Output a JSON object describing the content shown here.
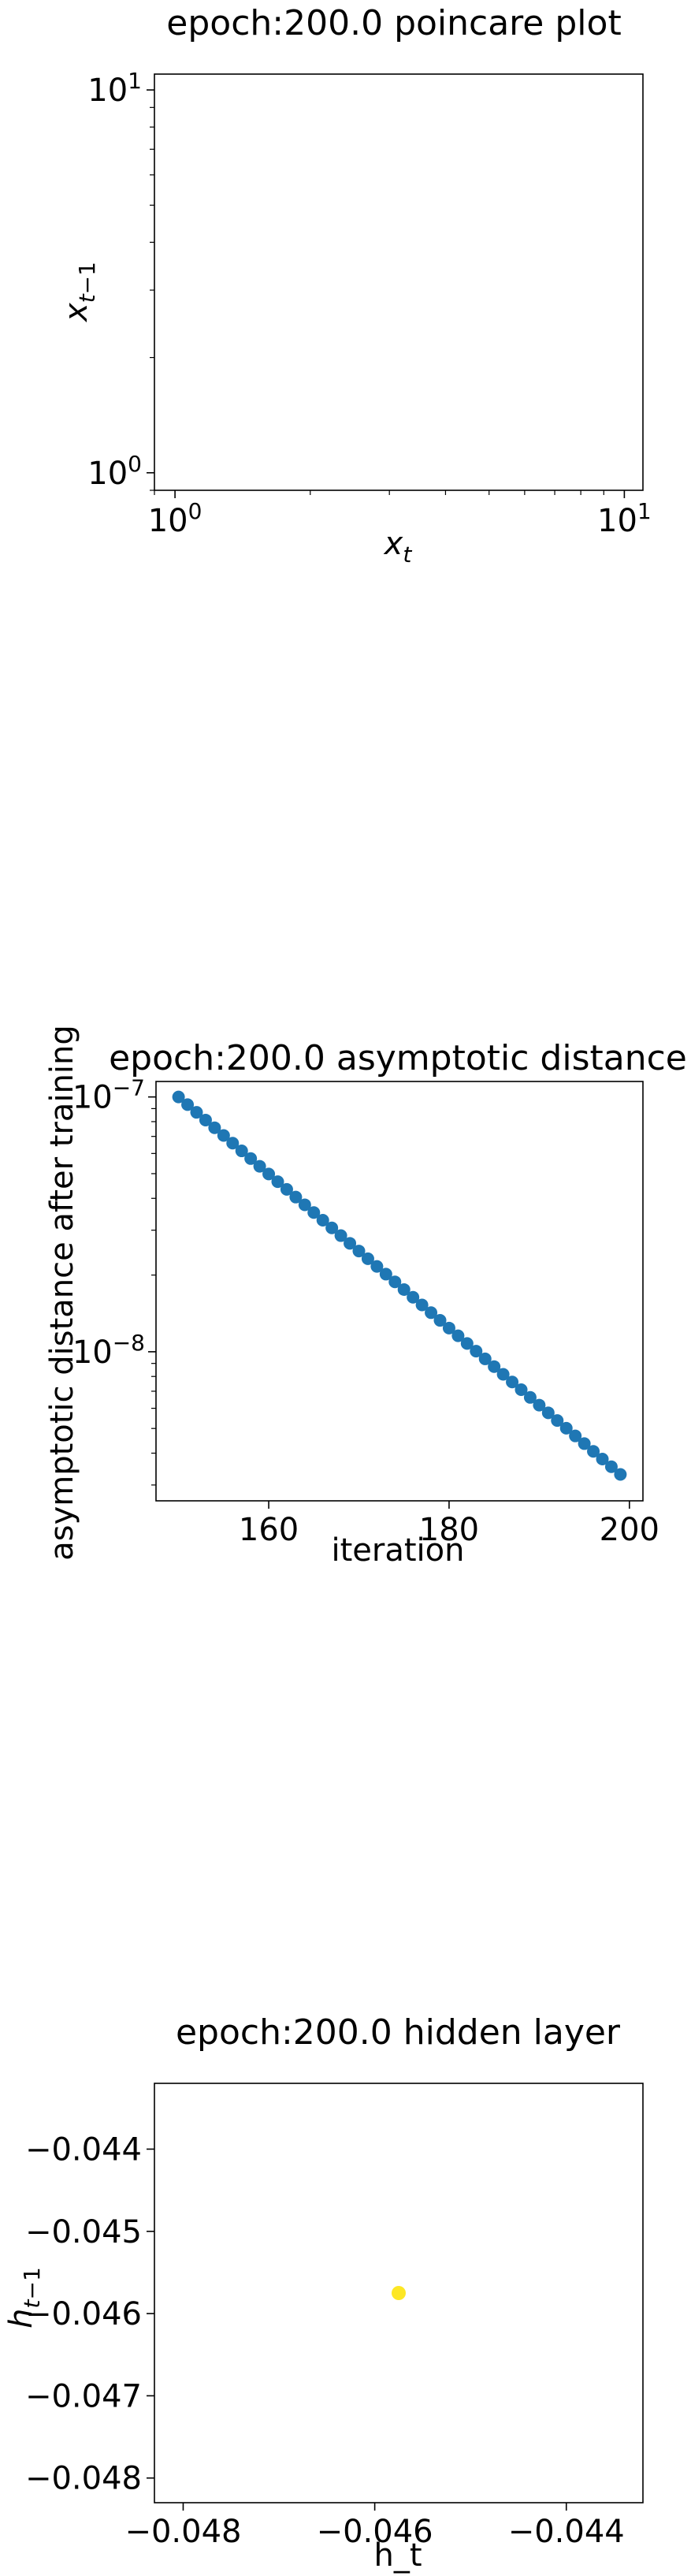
{
  "chart_data": [
    {
      "type": "scatter",
      "title": "epoch:200.0 poincare plot",
      "xlabel": "x_t",
      "ylabel": "x_{t-1}",
      "xscale": "log",
      "yscale": "log",
      "xlim": [
        0.9,
        11
      ],
      "ylim": [
        0.9,
        11
      ],
      "xticks": [
        {
          "value": 1,
          "base": "10",
          "exp": "0"
        },
        {
          "value": 10,
          "base": "10",
          "exp": "1"
        }
      ],
      "yticks": [
        {
          "value": 1,
          "base": "10",
          "exp": "0"
        },
        {
          "value": 10,
          "base": "10",
          "exp": "1"
        }
      ],
      "points": [],
      "grid": false
    },
    {
      "type": "scatter",
      "title": "epoch:200.0 asymptotic distance",
      "xlabel": "iteration",
      "ylabel": "asymptotic distance after training",
      "yscale": "log",
      "xlim": [
        147.5,
        201.5
      ],
      "ylim": [
        2.6e-09,
        1.15e-07
      ],
      "xticks": [
        {
          "value": 160,
          "label": "160"
        },
        {
          "value": 180,
          "label": "180"
        },
        {
          "value": 200,
          "label": "200"
        }
      ],
      "yticks": [
        {
          "value": 1e-08,
          "base": "10",
          "exp": "−8"
        },
        {
          "value": 1e-07,
          "base": "10",
          "exp": "−7"
        }
      ],
      "marker_color": "#1f77b4",
      "x_start": 150,
      "x_end": 199,
      "y_start": 1e-07,
      "y_end": 3.3e-09,
      "grid": false
    },
    {
      "type": "scatter",
      "title": "epoch:200.0 hidden layer",
      "xlabel": "h_t",
      "ylabel": "h_{t-1}",
      "xlim": [
        -0.0483,
        -0.0432
      ],
      "ylim": [
        -0.0483,
        -0.0432
      ],
      "xticks": [
        {
          "value": -0.048,
          "label": "−0.048"
        },
        {
          "value": -0.046,
          "label": "−0.046"
        },
        {
          "value": -0.044,
          "label": "−0.044"
        }
      ],
      "yticks": [
        {
          "value": -0.048,
          "label": "−0.048"
        },
        {
          "value": -0.047,
          "label": "−0.047"
        },
        {
          "value": -0.046,
          "label": "−0.046"
        },
        {
          "value": -0.045,
          "label": "−0.045"
        },
        {
          "value": -0.044,
          "label": "−0.044"
        }
      ],
      "points": [
        {
          "x": -0.04575,
          "y": -0.04575
        }
      ],
      "marker_color": "#fde725",
      "grid": false
    }
  ]
}
